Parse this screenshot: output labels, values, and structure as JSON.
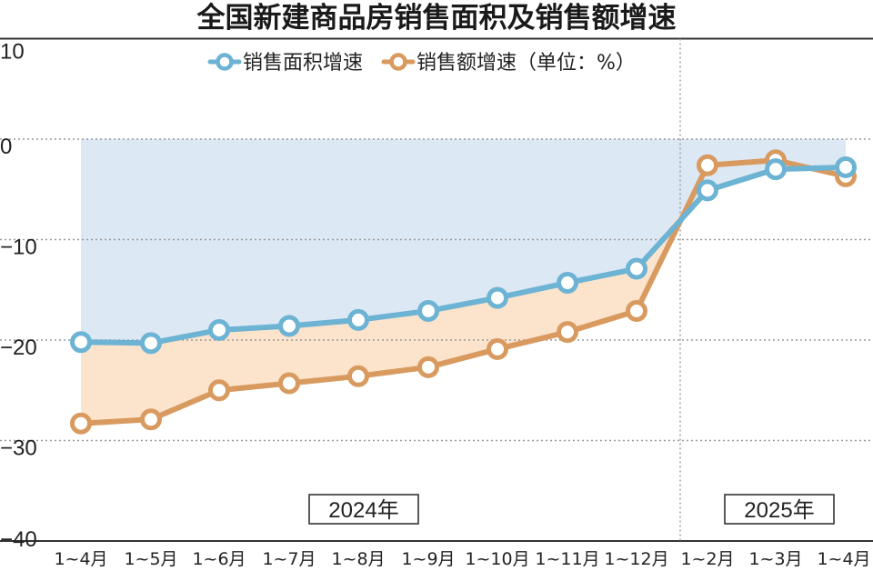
{
  "chart_data": {
    "type": "line",
    "title": "全国新建商品房销售面积及销售额增速",
    "legend_unit": "（单位：%）",
    "categories": [
      "1~4月",
      "1~5月",
      "1~6月",
      "1~7月",
      "1~8月",
      "1~9月",
      "1~10月",
      "1~11月",
      "1~12月",
      "1~2月",
      "1~3月",
      "1~4月"
    ],
    "series": [
      {
        "name": "销售面积增速",
        "color": "#6cb3d4",
        "values": [
          -20.2,
          -20.3,
          -19.0,
          -18.6,
          -18.0,
          -17.1,
          -15.8,
          -14.3,
          -12.9,
          -5.1,
          -3.0,
          -2.8
        ]
      },
      {
        "name": "销售额增速",
        "color": "#d99a5f",
        "values": [
          -28.3,
          -27.9,
          -25.0,
          -24.3,
          -23.6,
          -22.7,
          -20.9,
          -19.2,
          -17.1,
          -2.6,
          -2.1,
          -3.7
        ]
      }
    ],
    "ylim": [
      -40,
      10
    ],
    "yticks": [
      "10",
      "0",
      "−10",
      "−20",
      "−30",
      "−40"
    ],
    "year_labels": [
      "2024年",
      "2025年"
    ],
    "legend_position": "top-center",
    "grid": true,
    "fill_colors": {
      "area_shade": "#dce8f4",
      "sales_gap_shade": "#fbe3cc"
    }
  }
}
